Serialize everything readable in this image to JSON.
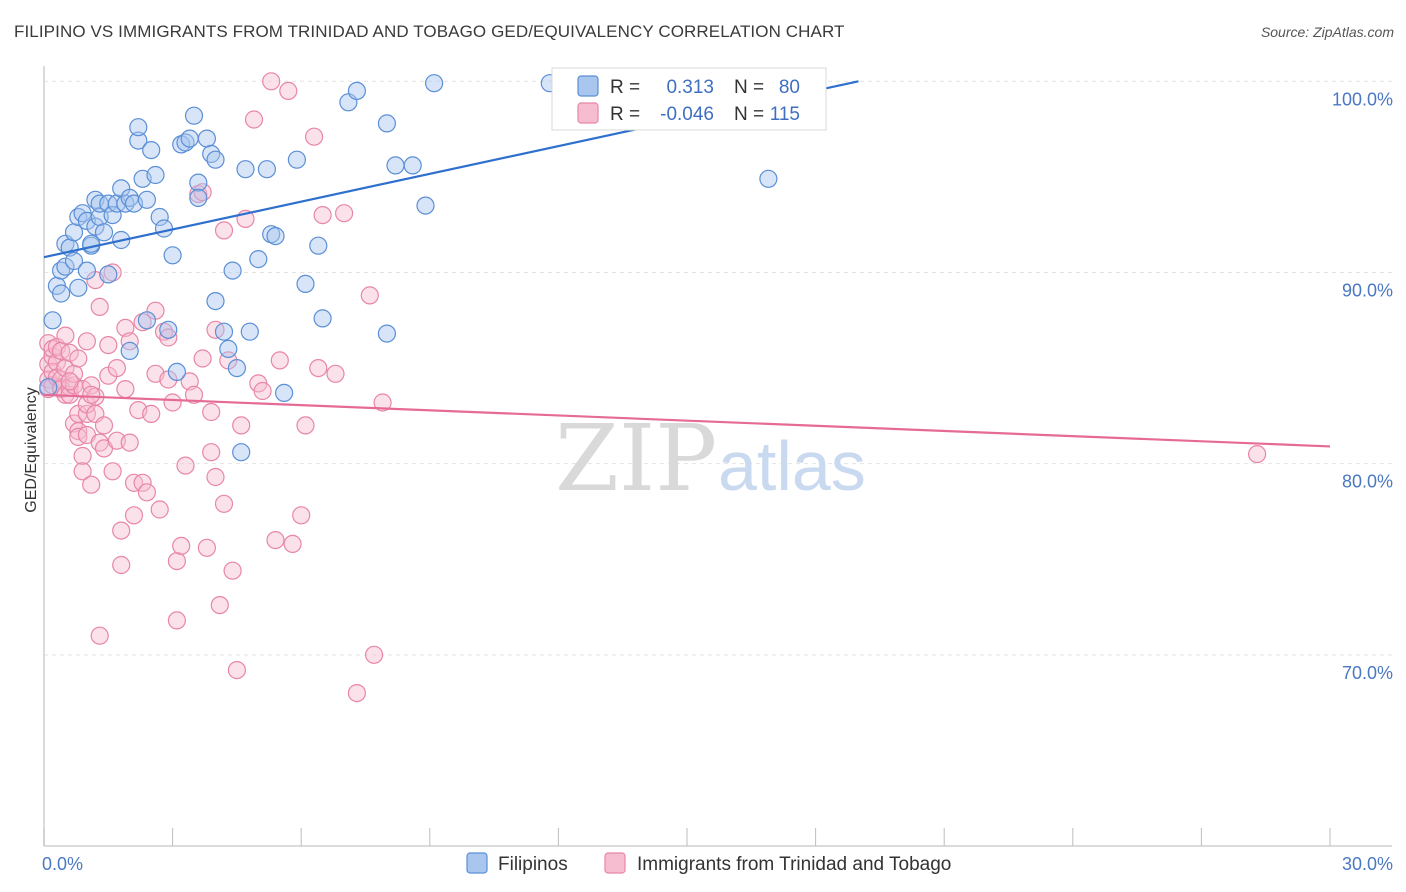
{
  "title": "FILIPINO VS IMMIGRANTS FROM TRINIDAD AND TOBAGO GED/EQUIVALENCY CORRELATION CHART",
  "source": "Source: ZipAtlas.com",
  "watermark": {
    "zip": "ZIP",
    "atlas": "atlas"
  },
  "colors": {
    "blue_fill": "#a9c6ef",
    "blue_stroke": "#5b8fd6",
    "blue_line": "#2f6fcd",
    "pink_fill": "#f6bdd0",
    "pink_stroke": "#e886a8",
    "pink_line": "#e56a95",
    "tick_text": "#4a78c2",
    "grid": "#e3e3e3"
  },
  "legend": {
    "rows": [
      {
        "r_label": "R =",
        "r_value": "0.313",
        "n_label": "N =",
        "n_value": "80"
      },
      {
        "r_label": "R =",
        "r_value": "-0.046",
        "n_label": "N =",
        "n_value": "115"
      }
    ]
  },
  "chart_data": {
    "type": "scatter",
    "title": "FILIPINO VS IMMIGRANTS FROM TRINIDAD AND TOBAGO GED/EQUIVALENCY CORRELATION CHART",
    "xlabel": "",
    "ylabel": "GED/Equivalency",
    "xlim": [
      0,
      30
    ],
    "ylim": [
      60,
      100.8
    ],
    "x_tick_labels": [
      "0.0%",
      "30.0%"
    ],
    "y_ticks": [
      70,
      80,
      90,
      100
    ],
    "y_tick_labels": [
      "70.0%",
      "80.0%",
      "90.0%",
      "100.0%"
    ],
    "grid": true,
    "legend_position": "top-center",
    "series": [
      {
        "name": "Filipinos",
        "r": 0.313,
        "n": 80,
        "trend": {
          "x": [
            0,
            19
          ],
          "y": [
            90.8,
            100.0
          ]
        },
        "points": [
          [
            0.2,
            87.5
          ],
          [
            0.3,
            89.3
          ],
          [
            0.4,
            88.9
          ],
          [
            0.4,
            90.1
          ],
          [
            0.5,
            90.3
          ],
          [
            0.5,
            91.5
          ],
          [
            0.6,
            91.3
          ],
          [
            0.7,
            90.6
          ],
          [
            0.7,
            92.1
          ],
          [
            0.8,
            92.9
          ],
          [
            0.8,
            89.2
          ],
          [
            0.9,
            93.1
          ],
          [
            1.0,
            90.1
          ],
          [
            1.0,
            92.7
          ],
          [
            1.1,
            91.4
          ],
          [
            1.1,
            91.5
          ],
          [
            1.2,
            92.4
          ],
          [
            1.2,
            93.8
          ],
          [
            1.3,
            92.9
          ],
          [
            1.3,
            93.6
          ],
          [
            1.4,
            92.1
          ],
          [
            1.5,
            93.6
          ],
          [
            1.5,
            89.9
          ],
          [
            1.6,
            93.0
          ],
          [
            1.7,
            93.6
          ],
          [
            1.8,
            94.4
          ],
          [
            1.8,
            91.7
          ],
          [
            1.9,
            93.6
          ],
          [
            2.0,
            93.9
          ],
          [
            2.0,
            85.9
          ],
          [
            2.1,
            93.6
          ],
          [
            2.2,
            96.9
          ],
          [
            2.2,
            97.6
          ],
          [
            2.3,
            94.9
          ],
          [
            2.4,
            93.8
          ],
          [
            2.5,
            96.4
          ],
          [
            2.6,
            95.1
          ],
          [
            2.7,
            92.9
          ],
          [
            2.8,
            92.3
          ],
          [
            2.9,
            87.0
          ],
          [
            3.0,
            90.9
          ],
          [
            3.1,
            84.8
          ],
          [
            3.2,
            96.7
          ],
          [
            3.3,
            96.8
          ],
          [
            3.4,
            97.0
          ],
          [
            3.5,
            98.2
          ],
          [
            3.6,
            94.7
          ],
          [
            3.6,
            93.9
          ],
          [
            3.8,
            97.0
          ],
          [
            3.9,
            96.2
          ],
          [
            4.0,
            95.9
          ],
          [
            4.0,
            88.5
          ],
          [
            4.2,
            86.9
          ],
          [
            4.3,
            86.0
          ],
          [
            4.4,
            90.1
          ],
          [
            4.5,
            85.0
          ],
          [
            4.6,
            80.6
          ],
          [
            4.7,
            95.4
          ],
          [
            4.8,
            86.9
          ],
          [
            5.0,
            90.7
          ],
          [
            5.2,
            95.4
          ],
          [
            5.3,
            92.0
          ],
          [
            5.4,
            91.9
          ],
          [
            5.6,
            83.7
          ],
          [
            5.9,
            95.9
          ],
          [
            6.1,
            89.4
          ],
          [
            6.4,
            91.4
          ],
          [
            6.5,
            87.6
          ],
          [
            7.1,
            98.9
          ],
          [
            7.3,
            99.5
          ],
          [
            8.0,
            86.8
          ],
          [
            8.0,
            97.8
          ],
          [
            8.2,
            95.6
          ],
          [
            8.6,
            95.6
          ],
          [
            8.9,
            93.5
          ],
          [
            9.1,
            99.9
          ],
          [
            11.8,
            99.9
          ],
          [
            16.9,
            94.9
          ],
          [
            0.1,
            84.0
          ],
          [
            2.4,
            87.5
          ]
        ]
      },
      {
        "name": "Immigrants from Trinidad and Tobago",
        "r": -0.046,
        "n": 115,
        "trend": {
          "x": [
            0,
            30
          ],
          "y": [
            83.6,
            80.9
          ]
        },
        "points": [
          [
            0.1,
            83.9
          ],
          [
            0.1,
            85.2
          ],
          [
            0.1,
            84.4
          ],
          [
            0.1,
            86.3
          ],
          [
            0.2,
            85.6
          ],
          [
            0.2,
            84.8
          ],
          [
            0.2,
            86.0
          ],
          [
            0.2,
            84.1
          ],
          [
            0.3,
            85.3
          ],
          [
            0.3,
            84.5
          ],
          [
            0.3,
            86.1
          ],
          [
            0.4,
            84.0
          ],
          [
            0.4,
            85.9
          ],
          [
            0.4,
            84.4
          ],
          [
            0.4,
            83.9
          ],
          [
            0.5,
            83.6
          ],
          [
            0.5,
            85.0
          ],
          [
            0.5,
            86.7
          ],
          [
            0.6,
            84.0
          ],
          [
            0.6,
            83.6
          ],
          [
            0.6,
            85.8
          ],
          [
            0.7,
            84.1
          ],
          [
            0.7,
            82.1
          ],
          [
            0.7,
            84.7
          ],
          [
            0.8,
            81.7
          ],
          [
            0.8,
            81.4
          ],
          [
            0.8,
            82.6
          ],
          [
            0.8,
            85.5
          ],
          [
            0.9,
            83.9
          ],
          [
            0.9,
            80.4
          ],
          [
            0.9,
            79.6
          ],
          [
            1.0,
            81.5
          ],
          [
            1.0,
            82.6
          ],
          [
            1.0,
            83.1
          ],
          [
            1.0,
            86.4
          ],
          [
            1.1,
            78.9
          ],
          [
            1.1,
            84.1
          ],
          [
            1.2,
            83.5
          ],
          [
            1.2,
            82.6
          ],
          [
            1.3,
            88.2
          ],
          [
            1.3,
            81.1
          ],
          [
            1.3,
            71.0
          ],
          [
            1.4,
            80.8
          ],
          [
            1.4,
            82.0
          ],
          [
            1.5,
            84.6
          ],
          [
            1.5,
            86.2
          ],
          [
            1.6,
            79.6
          ],
          [
            1.6,
            90.0
          ],
          [
            1.7,
            85.0
          ],
          [
            1.7,
            81.2
          ],
          [
            1.8,
            76.5
          ],
          [
            1.8,
            74.7
          ],
          [
            1.9,
            87.1
          ],
          [
            1.9,
            83.9
          ],
          [
            2.0,
            81.1
          ],
          [
            2.0,
            86.4
          ],
          [
            2.1,
            79.0
          ],
          [
            2.1,
            77.3
          ],
          [
            2.2,
            82.8
          ],
          [
            2.3,
            79.0
          ],
          [
            2.3,
            87.4
          ],
          [
            2.4,
            78.5
          ],
          [
            2.5,
            82.6
          ],
          [
            2.6,
            88.0
          ],
          [
            2.6,
            84.7
          ],
          [
            2.7,
            77.6
          ],
          [
            2.8,
            86.9
          ],
          [
            2.9,
            84.4
          ],
          [
            3.0,
            83.2
          ],
          [
            3.1,
            74.9
          ],
          [
            3.1,
            71.8
          ],
          [
            3.2,
            75.7
          ],
          [
            3.3,
            79.9
          ],
          [
            3.4,
            84.3
          ],
          [
            3.5,
            83.6
          ],
          [
            3.6,
            94.1
          ],
          [
            3.7,
            85.5
          ],
          [
            3.8,
            75.6
          ],
          [
            3.9,
            82.7
          ],
          [
            4.0,
            79.3
          ],
          [
            4.0,
            87.0
          ],
          [
            4.1,
            72.6
          ],
          [
            4.2,
            77.9
          ],
          [
            4.3,
            85.4
          ],
          [
            4.4,
            74.4
          ],
          [
            4.5,
            69.2
          ],
          [
            4.6,
            82.0
          ],
          [
            4.7,
            92.8
          ],
          [
            4.9,
            98.0
          ],
          [
            5.0,
            84.2
          ],
          [
            5.1,
            83.8
          ],
          [
            5.3,
            100.0
          ],
          [
            5.4,
            76.0
          ],
          [
            5.5,
            85.4
          ],
          [
            5.7,
            99.5
          ],
          [
            5.8,
            75.8
          ],
          [
            6.0,
            77.3
          ],
          [
            6.1,
            82.0
          ],
          [
            6.3,
            97.1
          ],
          [
            6.4,
            85.0
          ],
          [
            6.5,
            93.0
          ],
          [
            6.8,
            84.7
          ],
          [
            7.0,
            93.1
          ],
          [
            7.3,
            68.0
          ],
          [
            7.6,
            88.8
          ],
          [
            7.7,
            70.0
          ],
          [
            7.9,
            83.2
          ],
          [
            1.2,
            89.6
          ],
          [
            2.9,
            86.6
          ],
          [
            4.2,
            92.2
          ],
          [
            3.9,
            80.6
          ],
          [
            1.1,
            83.6
          ],
          [
            0.6,
            84.3
          ],
          [
            28.3,
            80.5
          ],
          [
            3.7,
            94.2
          ]
        ]
      }
    ]
  }
}
